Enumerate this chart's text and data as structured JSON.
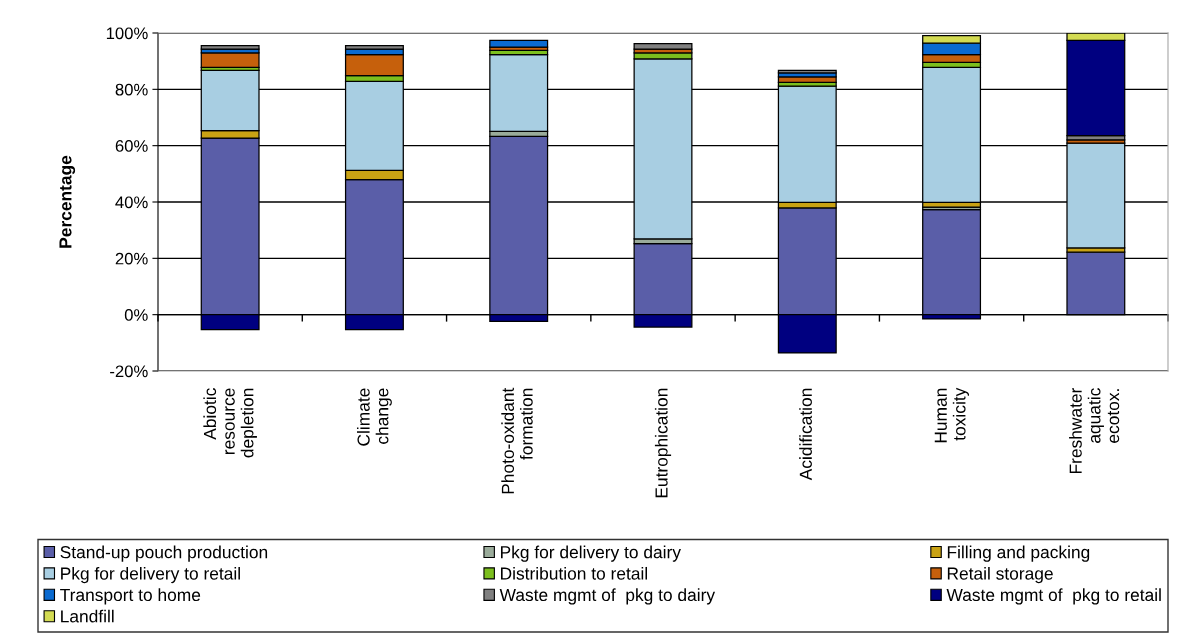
{
  "chart_data": {
    "type": "bar",
    "stacked": true,
    "ylabel": "Percentage",
    "categories": [
      "Abiotic\nresource\ndepletion",
      "Climate\nchange",
      "Photo-oxidant\nformation",
      "Eutrophication",
      "Acidification",
      "Human\ntoxicity",
      "Freshwater\naquatic\necotox."
    ],
    "series": [
      {
        "name": "Stand-up pouch production",
        "color": "#5a5ea8",
        "values": [
          62.7,
          47.9,
          63.3,
          25.2,
          37.9,
          37.3,
          22.2
        ]
      },
      {
        "name": "Pkg for delivery to dairy",
        "color": "#9aab9a",
        "values": [
          null,
          null,
          1.8,
          1.7,
          null,
          0.9,
          null
        ]
      },
      {
        "name": "Filling and packing",
        "color": "#c9a214",
        "values": [
          2.6,
          3.3,
          null,
          null,
          2.0,
          1.7,
          1.5
        ]
      },
      {
        "name": "Pkg for delivery to retail",
        "color": "#a8cee2",
        "values": [
          21.4,
          31.6,
          27.2,
          63.9,
          41.2,
          47.9,
          37.2
        ]
      },
      {
        "name": "Distribution to retail",
        "color": "#7cbf1e",
        "values": [
          1.1,
          2.1,
          1.5,
          2.1,
          1.4,
          1.8,
          null
        ]
      },
      {
        "name": "Retail storage",
        "color": "#c6600c",
        "values": [
          5.1,
          7.4,
          1.2,
          1.4,
          1.9,
          2.7,
          1.2
        ]
      },
      {
        "name": "Transport to home",
        "color": "#0a6ad0",
        "values": [
          1.4,
          2.0,
          2.4,
          null,
          1.4,
          4.1,
          null
        ]
      },
      {
        "name": "Waste mgmt of  pkg to dairy",
        "color": "#808080",
        "values": [
          1.2,
          1.2,
          null,
          1.9,
          0.9,
          null,
          1.5
        ]
      },
      {
        "name": "Waste mgmt of  pkg to retail",
        "color": "#000080",
        "values": [
          -5.3,
          -5.3,
          -2.4,
          -4.4,
          -13.6,
          -1.5,
          33.8
        ]
      },
      {
        "name": "Landfill",
        "color": "#d3db52",
        "values": [
          null,
          null,
          null,
          null,
          null,
          2.7,
          2.6
        ]
      }
    ],
    "ylim": [
      -20,
      100
    ],
    "yticks": [
      {
        "value": -20,
        "label": "-20%"
      },
      {
        "value": 0,
        "label": "0%"
      },
      {
        "value": 20,
        "label": "20%"
      },
      {
        "value": 40,
        "label": "40%"
      },
      {
        "value": 60,
        "label": "60%"
      },
      {
        "value": 80,
        "label": "80%"
      },
      {
        "value": 100,
        "label": "100%"
      }
    ],
    "grid": "y",
    "legend": "bottom"
  }
}
